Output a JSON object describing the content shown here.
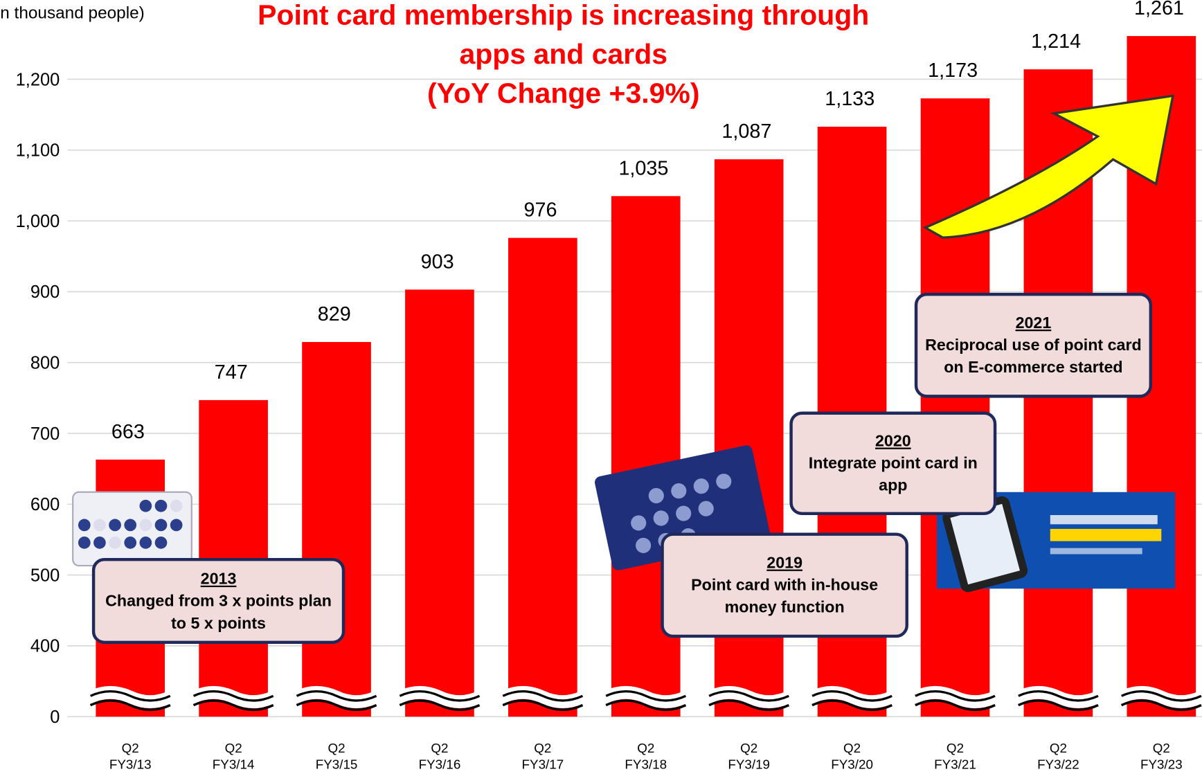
{
  "chart_data": {
    "type": "bar",
    "title": "Point card membership is increasing through apps and cards",
    "subtitle": "(YoY Change +3.9%)",
    "y_label": "(in thousand people)",
    "categories": [
      "Q2\nFY3/13",
      "Q2\nFY3/14",
      "Q2\nFY3/15",
      "Q2\nFY3/16",
      "Q2\nFY3/17",
      "Q2\nFY3/18",
      "Q2\nFY3/19",
      "Q2\nFY3/20",
      "Q2\nFY3/21",
      "Q2\nFY3/22",
      "Q2\nFY3/23"
    ],
    "values": [
      663,
      747,
      829,
      903,
      976,
      1035,
      1087,
      1133,
      1173,
      1214,
      1261
    ],
    "value_labels": [
      "663",
      "747",
      "829",
      "903",
      "976",
      "1,035",
      "1,087",
      "1,133",
      "1,173",
      "1,214",
      "1,261"
    ],
    "color": "#ff0000",
    "ylim": [
      0,
      1300
    ],
    "y_break": [
      0,
      300
    ],
    "yticks": [
      0,
      400,
      500,
      600,
      700,
      800,
      900,
      {
        "value": 1000,
        "label": "1,000"
      },
      {
        "value": 1100,
        "label": "1,100"
      },
      {
        "value": 1200,
        "label": "1,200"
      }
    ],
    "grid": true,
    "annotations": [
      {
        "year": "2013",
        "text": "Changed from 3 x points plan to 5 x points"
      },
      {
        "year": "2019",
        "text": "Point card with in-house money function"
      },
      {
        "year": "2020",
        "text": "Integrate point card in app"
      },
      {
        "year": "2021",
        "text": "Reciprocal use of point card on E-commerce started"
      }
    ]
  }
}
